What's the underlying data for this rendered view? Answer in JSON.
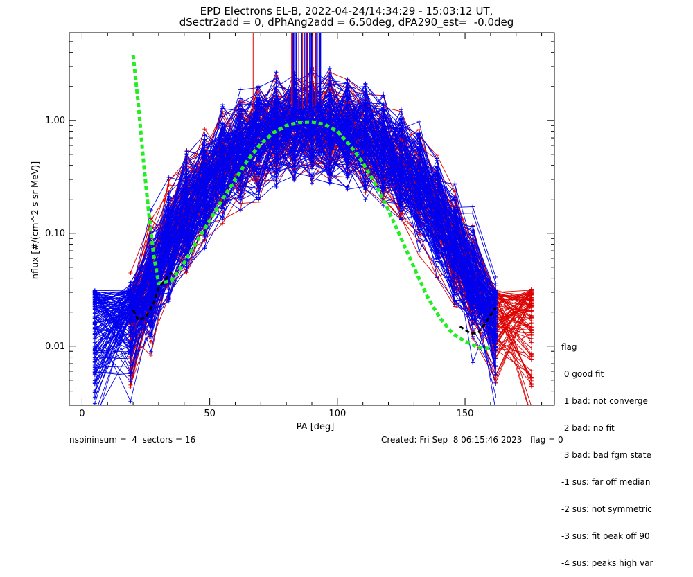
{
  "title": {
    "line1": "EPD Electrons EL-B, 2022-04-24/14:34:29 - 15:03:12 UT,",
    "line2": "dSectr2add = 0, dPhAng2add = 6.50deg, dPA290_est=  -0.0deg"
  },
  "chart_data": {
    "type": "line",
    "xlabel": "PA [deg]",
    "ylabel": "nflux [#/(cm^2 s sr MeV)]",
    "xlim": [
      -5,
      185
    ],
    "ylim": [
      0.003,
      6.0
    ],
    "yscale": "log",
    "x_ticks": [
      0,
      50,
      100,
      150
    ],
    "x_tick_labels": [
      "0",
      "50",
      "100",
      "150"
    ],
    "y_ticks": [
      0.01,
      0.1,
      1.0
    ],
    "y_tick_labels": [
      "0.01",
      "0.10",
      "1.00"
    ],
    "colors": {
      "red": "#dd0000",
      "blue": "#0000ee",
      "green": "#22ee22",
      "black": "#000000"
    },
    "series": [
      {
        "color": "green",
        "style": "dashed-thick",
        "x": [
          20,
          22,
          24,
          26,
          28,
          30,
          35,
          40,
          45,
          50,
          55,
          60,
          65,
          70,
          75,
          80,
          85,
          90,
          95,
          100,
          105,
          110,
          115,
          120,
          125,
          130,
          135,
          140,
          145,
          150,
          155,
          160
        ],
        "y": [
          3.8,
          1.4,
          0.45,
          0.16,
          0.065,
          0.036,
          0.038,
          0.055,
          0.085,
          0.13,
          0.2,
          0.3,
          0.45,
          0.62,
          0.78,
          0.9,
          0.96,
          0.97,
          0.92,
          0.8,
          0.6,
          0.42,
          0.27,
          0.16,
          0.09,
          0.05,
          0.028,
          0.018,
          0.013,
          0.011,
          0.0098,
          0.0095
        ]
      },
      {
        "color": "black",
        "style": "dashed",
        "x": [
          20,
          22,
          25,
          28,
          30,
          35
        ],
        "y": [
          0.021,
          0.017,
          0.018,
          0.024,
          0.033,
          0.045
        ]
      },
      {
        "color": "black",
        "style": "dashed",
        "x": [
          148,
          152,
          155,
          158,
          162
        ],
        "y": [
          0.015,
          0.013,
          0.013,
          0.016,
          0.022
        ]
      }
    ]
  },
  "flag_legend": {
    "header": "flag",
    "items": [
      " 0 good fit",
      " 1 bad: not converge",
      " 2 bad: no fit",
      " 3 bad: bad fgm state",
      "-1 sus: far off median",
      "-2 sus: not symmetric",
      "-3 sus: fit peak off 90",
      "-4 sus: peaks high var"
    ]
  },
  "footer": {
    "left": "nspininsum =  4  sectors = 16",
    "right": "Created: Fri Sep  8 06:15:46 2023   flag = 0"
  }
}
